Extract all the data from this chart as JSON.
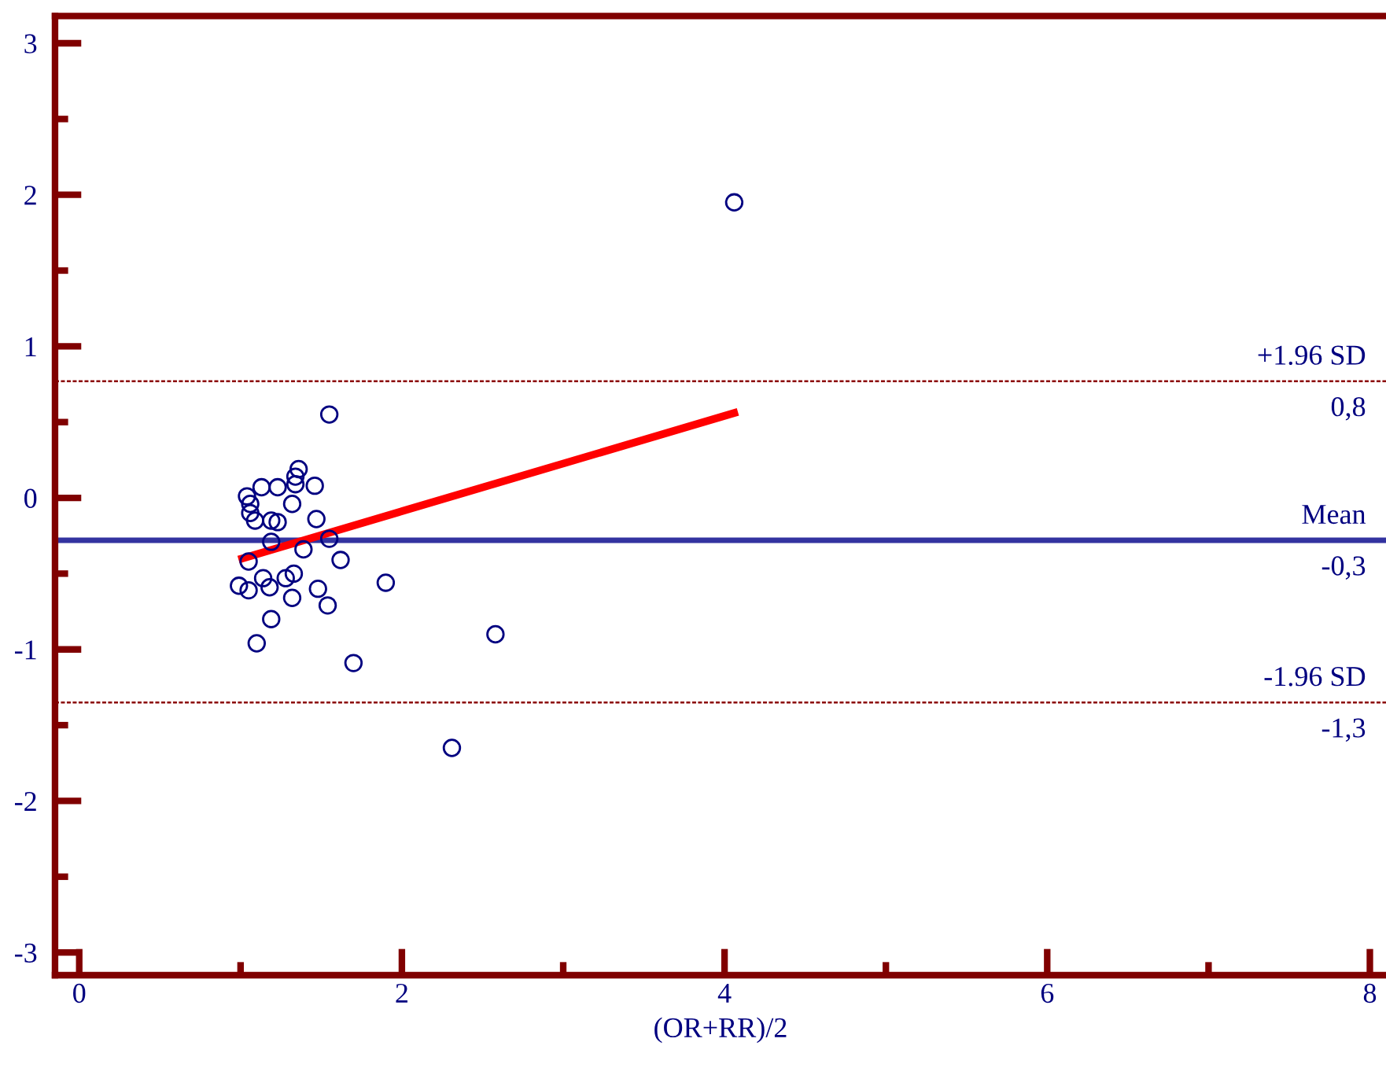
{
  "chart_data": {
    "type": "scatter",
    "xlabel": "(OR+RR)/2",
    "series": [
      {
        "color": "#000080",
        "marker": "circle",
        "x": [
          1.55,
          1.36,
          1.34,
          1.13,
          1.23,
          1.34,
          1.46,
          1.04,
          1.06,
          1.32,
          1.06,
          1.09,
          1.19,
          1.23,
          1.47,
          1.19,
          1.55,
          1.39,
          1.62,
          1.05,
          1.14,
          1.28,
          1.33,
          0.99,
          1.05,
          1.18,
          1.48,
          1.9,
          1.32,
          1.54,
          1.19,
          1.1,
          1.7,
          2.58,
          2.31,
          4.06
        ],
        "values": [
          0.55,
          0.19,
          0.14,
          0.07,
          0.07,
          0.09,
          0.08,
          0.01,
          -0.04,
          -0.04,
          -0.1,
          -0.15,
          -0.15,
          -0.16,
          -0.14,
          -0.29,
          -0.27,
          -0.34,
          -0.41,
          -0.42,
          -0.53,
          -0.53,
          -0.5,
          -0.58,
          -0.61,
          -0.59,
          -0.6,
          -0.56,
          -0.66,
          -0.71,
          -0.8,
          -0.96,
          -1.09,
          -0.9,
          -1.65,
          1.95
        ]
      },
      {
        "type": "line",
        "color": "#ff0000",
        "marker": "none",
        "line_style": "solid",
        "x": [
          1.01,
          4.06
        ],
        "values": [
          -0.4,
          0.56
        ]
      }
    ],
    "ref_lines": [
      {
        "axis": "y",
        "value": 0.77,
        "label": "+1.96 SD",
        "color": "#8b0000",
        "line_style": "dotted"
      },
      {
        "axis": "y",
        "value": -0.28,
        "label": "Mean",
        "color": "#3333a0",
        "line_style": "solid"
      },
      {
        "axis": "y",
        "value": -1.35,
        "label": "-1.96 SD",
        "color": "#8b0000",
        "line_style": "dotted"
      }
    ],
    "annotations": [
      {
        "text": "0,8",
        "y": 0.77
      },
      {
        "text": "-0,3",
        "y": -0.28
      },
      {
        "text": "-1,3",
        "y": -1.35
      }
    ],
    "xlim": [
      -0.15,
      8.1
    ],
    "ylim": [
      -3.15,
      3.18
    ],
    "xticks": [
      0,
      {
        "value": 1,
        "label": null
      },
      2,
      {
        "value": 3,
        "label": null
      },
      4,
      {
        "value": 5,
        "label": null
      },
      6,
      {
        "value": 7,
        "label": null
      },
      8
    ],
    "yticks": [
      -3,
      {
        "value": -2.5,
        "label": null
      },
      -2,
      {
        "value": -1.5,
        "label": null
      },
      -1,
      {
        "value": -0.5,
        "label": null
      },
      0,
      {
        "value": 0.5,
        "label": null
      },
      1,
      {
        "value": 1.5,
        "label": null
      },
      2,
      {
        "value": 2.5,
        "label": null
      },
      3
    ],
    "grid": false,
    "legend": false
  }
}
